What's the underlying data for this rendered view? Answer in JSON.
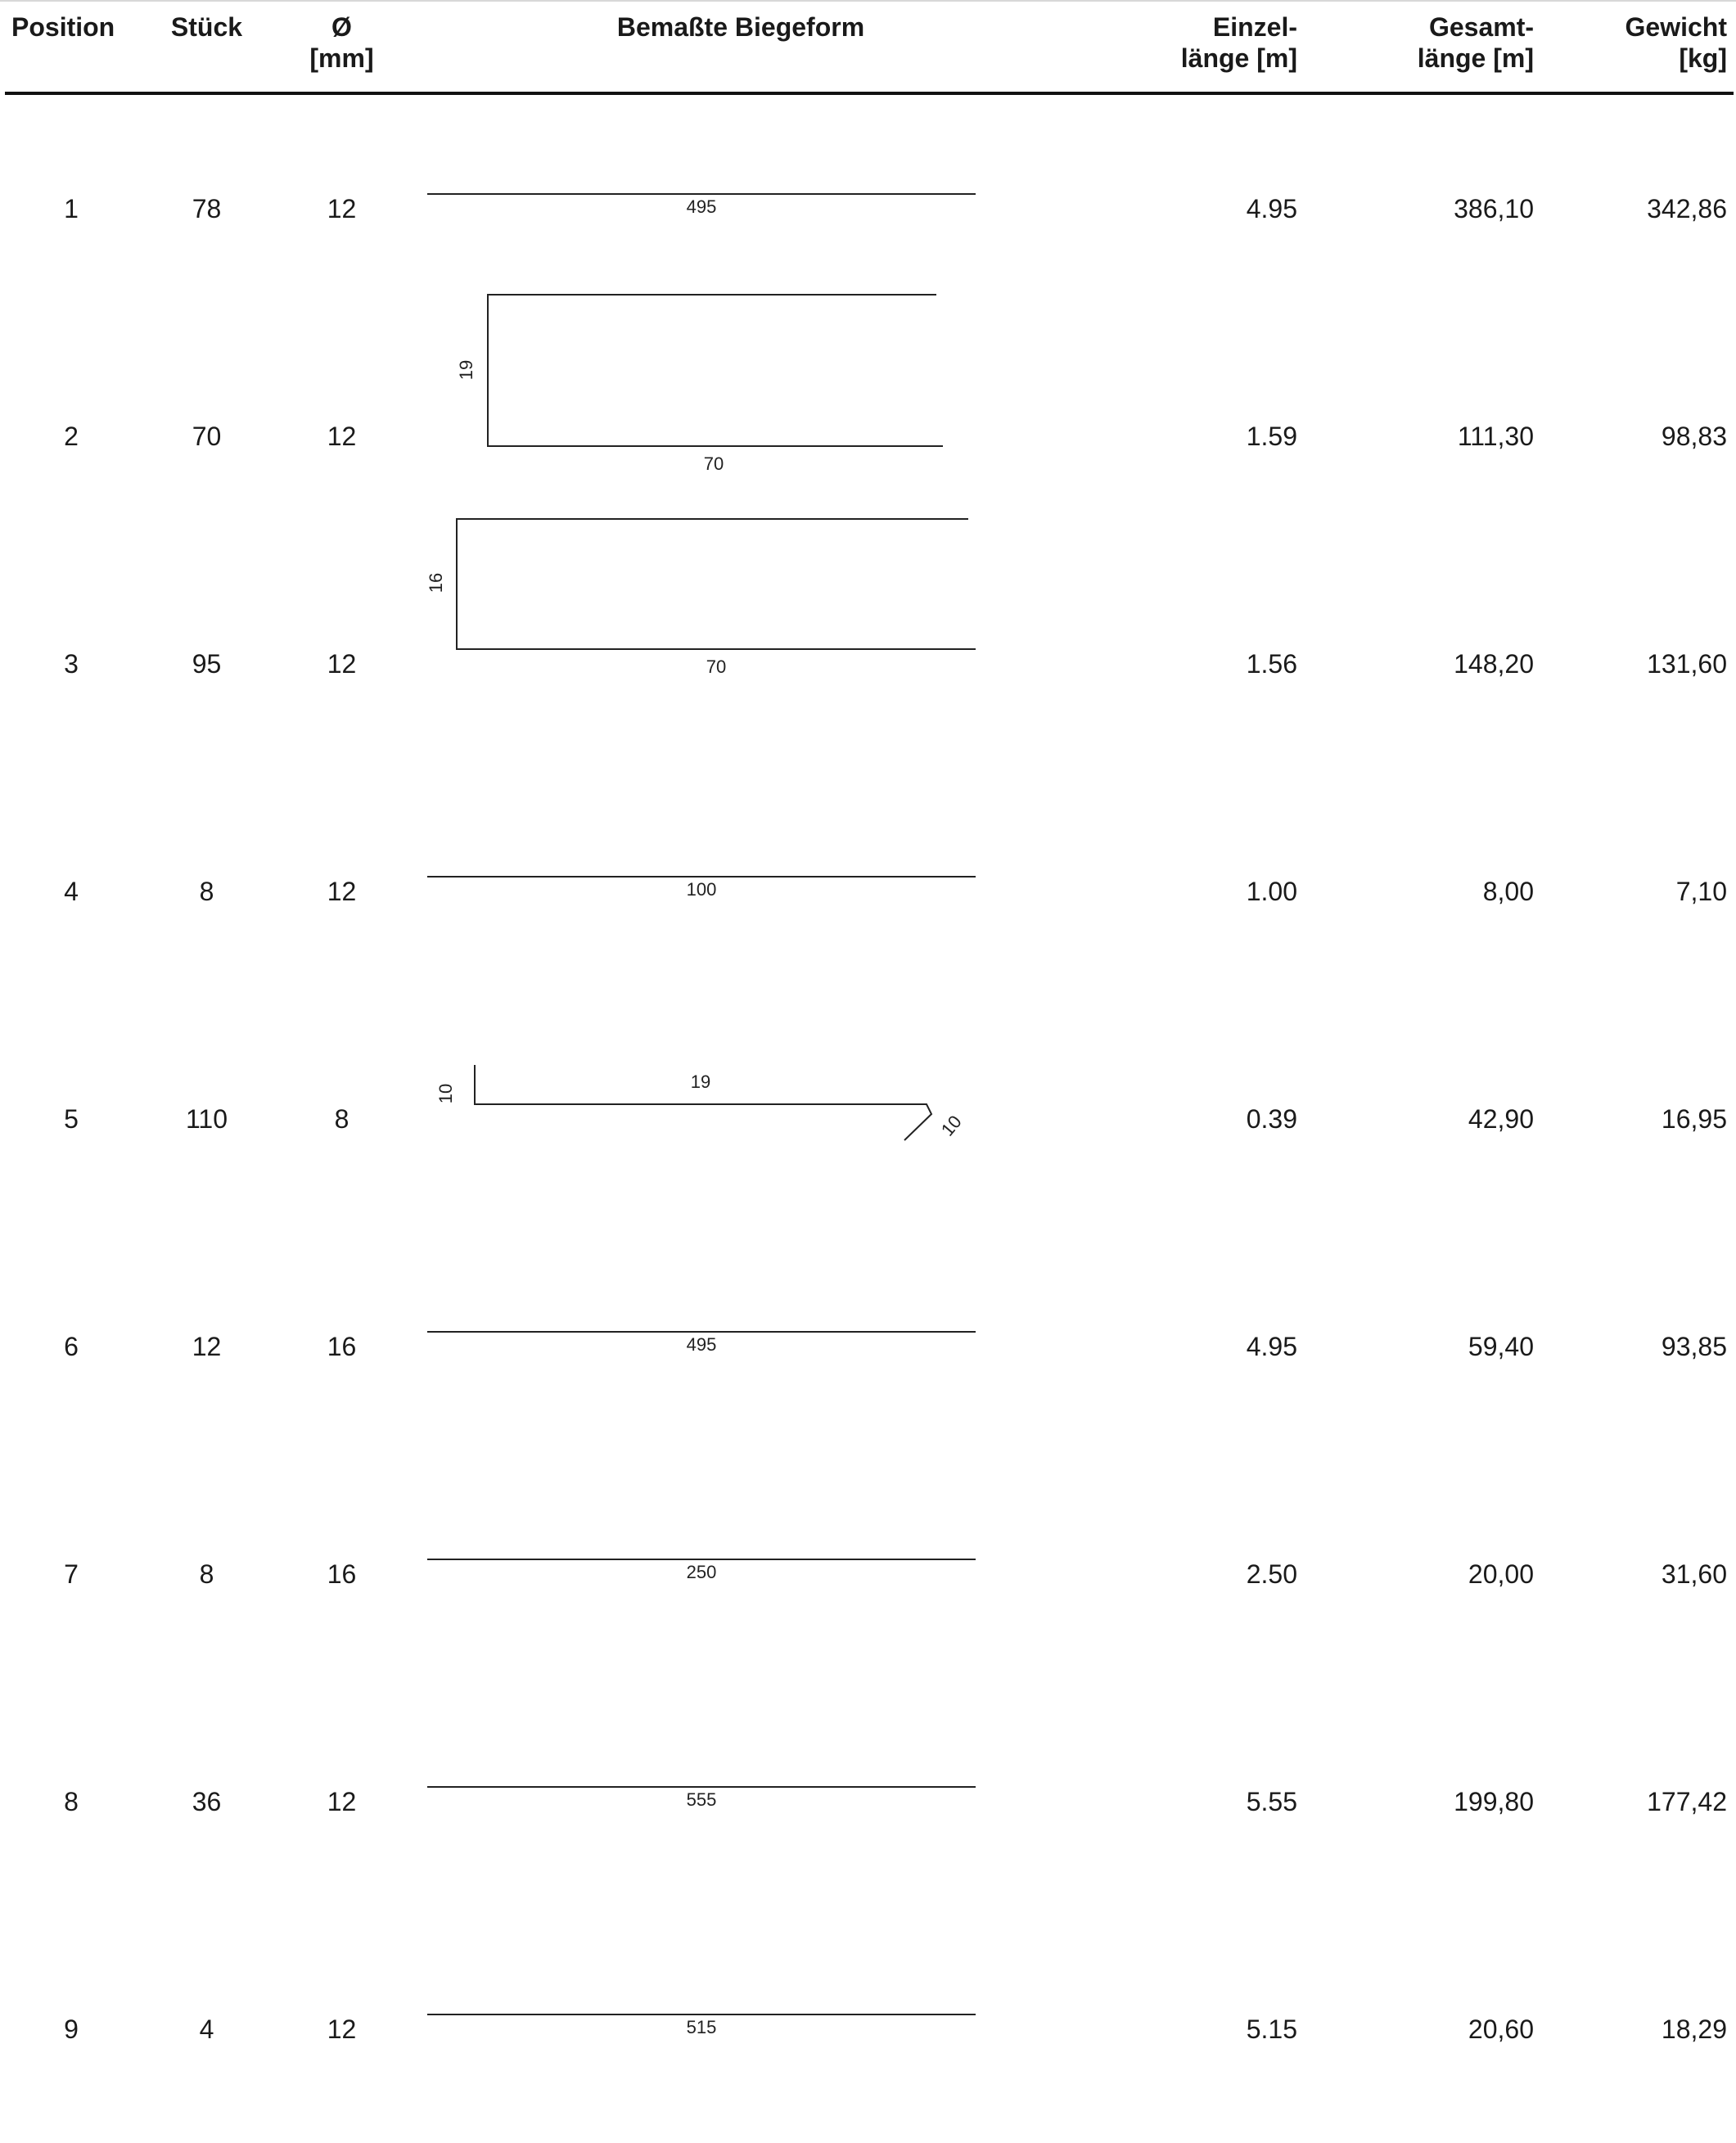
{
  "headers": {
    "position": "Position",
    "stueck": "Stück",
    "diameter_line1": "Ø",
    "diameter_line2": "[mm]",
    "biegeform": "Bemaßte Biegeform",
    "einzel_line1": "Einzel-",
    "einzel_line2": "länge [m]",
    "gesamt_line1": "Gesamt-",
    "gesamt_line2": "länge [m]",
    "gewicht_line1": "Gewicht",
    "gewicht_line2": "[kg]"
  },
  "rows": [
    {
      "position": "1",
      "stueck": "78",
      "diameter": "12",
      "shape": "straight",
      "dims": [
        "495"
      ],
      "einzel": "4.95",
      "gesamt": "386,10",
      "gewicht": "342,86"
    },
    {
      "position": "2",
      "stueck": "70",
      "diameter": "12",
      "shape": "u-open",
      "dims": [
        "19",
        "70"
      ],
      "einzel": "1.59",
      "gesamt": "111,30",
      "gewicht": "98,83"
    },
    {
      "position": "3",
      "stueck": "95",
      "diameter": "12",
      "shape": "u-open",
      "dims": [
        "16",
        "70"
      ],
      "einzel": "1.56",
      "gesamt": "148,20",
      "gewicht": "131,60"
    },
    {
      "position": "4",
      "stueck": "8",
      "diameter": "12",
      "shape": "straight",
      "dims": [
        "100"
      ],
      "einzel": "1.00",
      "gesamt": "8,00",
      "gewicht": "7,10"
    },
    {
      "position": "5",
      "stueck": "110",
      "diameter": "8",
      "shape": "hook",
      "dims": [
        "10",
        "19",
        "10"
      ],
      "einzel": "0.39",
      "gesamt": "42,90",
      "gewicht": "16,95"
    },
    {
      "position": "6",
      "stueck": "12",
      "diameter": "16",
      "shape": "straight",
      "dims": [
        "495"
      ],
      "einzel": "4.95",
      "gesamt": "59,40",
      "gewicht": "93,85"
    },
    {
      "position": "7",
      "stueck": "8",
      "diameter": "16",
      "shape": "straight",
      "dims": [
        "250"
      ],
      "einzel": "2.50",
      "gesamt": "20,00",
      "gewicht": "31,60"
    },
    {
      "position": "8",
      "stueck": "36",
      "diameter": "12",
      "shape": "straight",
      "dims": [
        "555"
      ],
      "einzel": "5.55",
      "gesamt": "199,80",
      "gewicht": "177,42"
    },
    {
      "position": "9",
      "stueck": "4",
      "diameter": "12",
      "shape": "straight",
      "dims": [
        "515"
      ],
      "einzel": "5.15",
      "gesamt": "20,60",
      "gewicht": "18,29"
    }
  ]
}
